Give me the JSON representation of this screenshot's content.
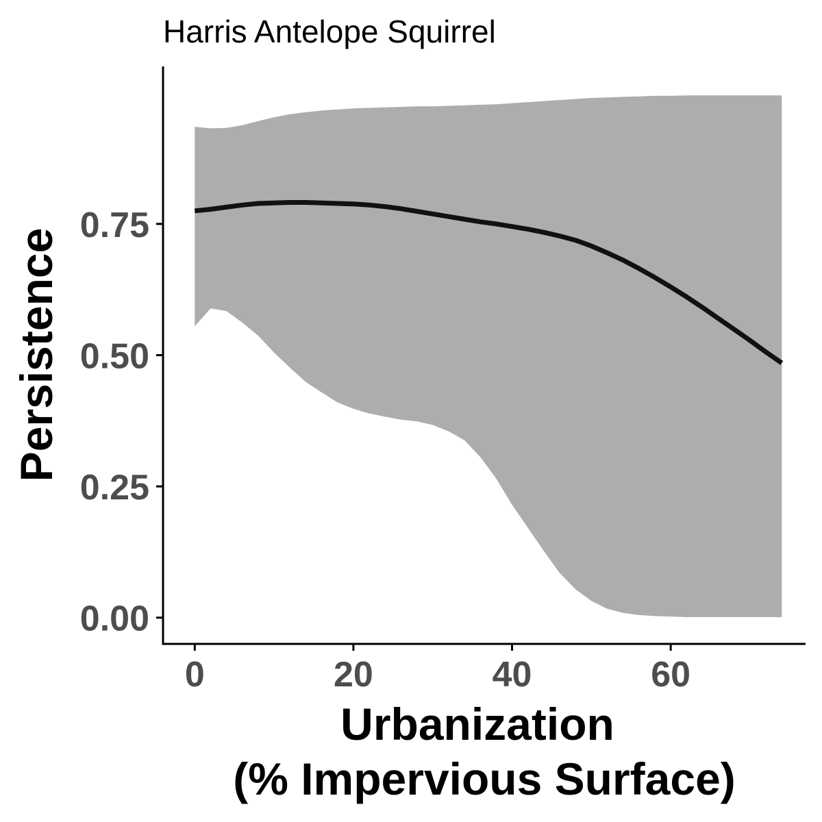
{
  "chart_data": {
    "type": "area",
    "title": "Harris Antelope Squirrel",
    "xlabel_lines": [
      "Urbanization",
      "(% Impervious Surface)"
    ],
    "ylabel": "Persistence",
    "xlim": [
      -4,
      77
    ],
    "ylim": [
      -0.05,
      1.05
    ],
    "x_ticks": [
      0,
      20,
      40,
      60
    ],
    "x_tick_labels": [
      "0",
      "20",
      "40",
      "60"
    ],
    "y_ticks": [
      0,
      0.25,
      0.5,
      0.75
    ],
    "y_tick_labels": [
      "0.00",
      "0.25",
      "0.50",
      "0.75"
    ],
    "grid": false,
    "legend": "none",
    "colors": {
      "line": "#111111",
      "ribbon": "#adadad",
      "axis": "#000000",
      "tick_text": "#4d4d4d"
    },
    "line": {
      "x": [
        0,
        2,
        4,
        6,
        8,
        10,
        12,
        14,
        16,
        18,
        20,
        22,
        24,
        26,
        28,
        30,
        32,
        34,
        36,
        38,
        40,
        42,
        44,
        46,
        48,
        50,
        52,
        54,
        56,
        58,
        60,
        62,
        64,
        66,
        68,
        70,
        72,
        74
      ],
      "y": [
        0.775,
        0.778,
        0.782,
        0.786,
        0.789,
        0.79,
        0.791,
        0.791,
        0.79,
        0.789,
        0.788,
        0.786,
        0.783,
        0.779,
        0.774,
        0.769,
        0.764,
        0.759,
        0.754,
        0.75,
        0.745,
        0.74,
        0.734,
        0.727,
        0.719,
        0.708,
        0.695,
        0.681,
        0.665,
        0.648,
        0.63,
        0.611,
        0.591,
        0.57,
        0.549,
        0.528,
        0.506,
        0.485
      ]
    },
    "ribbon": {
      "x": [
        0,
        2,
        4,
        6,
        8,
        10,
        12,
        14,
        16,
        18,
        20,
        22,
        24,
        26,
        28,
        30,
        32,
        34,
        36,
        38,
        40,
        42,
        44,
        46,
        48,
        50,
        52,
        54,
        56,
        58,
        60,
        62,
        64,
        66,
        68,
        70,
        72,
        74
      ],
      "upper": [
        0.935,
        0.932,
        0.933,
        0.938,
        0.946,
        0.953,
        0.959,
        0.963,
        0.966,
        0.968,
        0.97,
        0.971,
        0.972,
        0.973,
        0.974,
        0.974,
        0.975,
        0.976,
        0.977,
        0.978,
        0.98,
        0.982,
        0.984,
        0.986,
        0.988,
        0.99,
        0.991,
        0.992,
        0.993,
        0.994,
        0.994,
        0.995,
        0.995,
        0.995,
        0.995,
        0.995,
        0.995,
        0.995
      ],
      "lower": [
        0.555,
        0.589,
        0.584,
        0.562,
        0.537,
        0.505,
        0.476,
        0.449,
        0.429,
        0.41,
        0.398,
        0.389,
        0.383,
        0.377,
        0.374,
        0.367,
        0.355,
        0.338,
        0.306,
        0.265,
        0.215,
        0.171,
        0.127,
        0.085,
        0.054,
        0.032,
        0.017,
        0.009,
        0.005,
        0.003,
        0.002,
        0.001,
        0.001,
        0.001,
        0.001,
        0.001,
        0.001,
        0.001
      ]
    }
  }
}
